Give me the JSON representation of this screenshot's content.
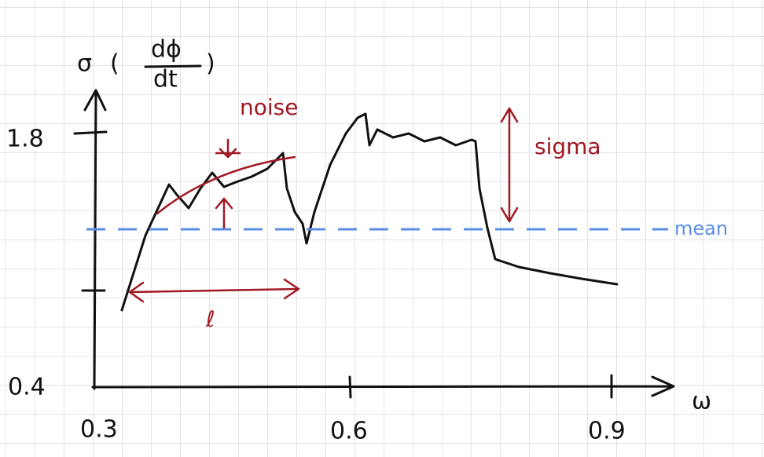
{
  "axes": {
    "y_label": {
      "symbol": "σ",
      "numerator": "dϕ",
      "denominator": "dt"
    },
    "x_label": "ω",
    "y_ticks": [
      "1.8",
      "0.4"
    ],
    "x_ticks": [
      "0.3",
      "0.6",
      "0.9"
    ]
  },
  "annotations": {
    "noise": "noise",
    "sigma": "sigma",
    "mean": "mean",
    "length": "ℓ"
  }
}
